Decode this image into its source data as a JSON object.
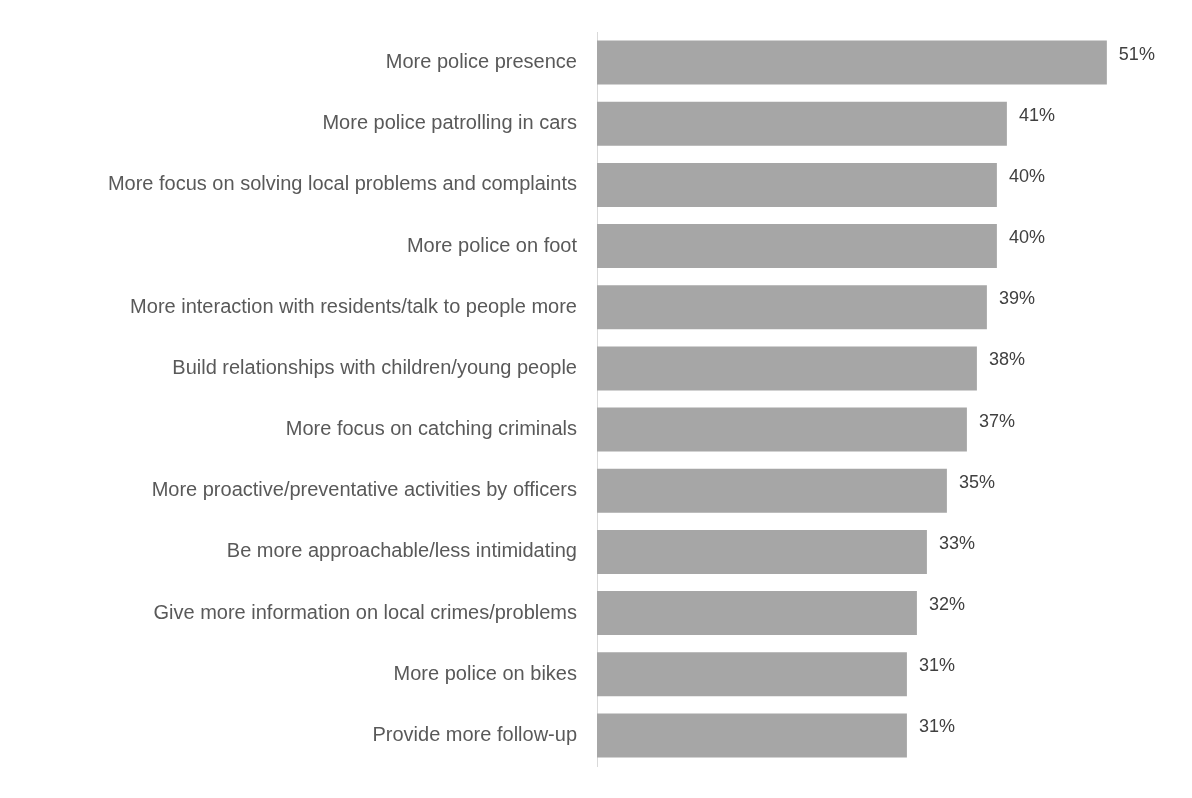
{
  "chart_data": {
    "type": "bar",
    "orientation": "horizontal",
    "categories": [
      "More police presence",
      "More police patrolling in cars",
      "More focus on solving local problems and complaints",
      "More police on foot",
      "More interaction with residents/talk to people more",
      "Build relationships with children/young people",
      "More focus on catching criminals",
      "More proactive/preventative activities by officers",
      "Be more approachable/less intimidating",
      "Give more information on local crimes/problems",
      "More police on bikes",
      "Provide more follow-up"
    ],
    "values": [
      51,
      41,
      40,
      40,
      39,
      38,
      37,
      35,
      33,
      32,
      31,
      31
    ],
    "value_labels": [
      "51%",
      "41%",
      "40%",
      "40%",
      "39%",
      "38%",
      "37%",
      "35%",
      "33%",
      "32%",
      "31%",
      "31%"
    ],
    "color": "#a6a6a6",
    "grid": false,
    "legend": false
  }
}
